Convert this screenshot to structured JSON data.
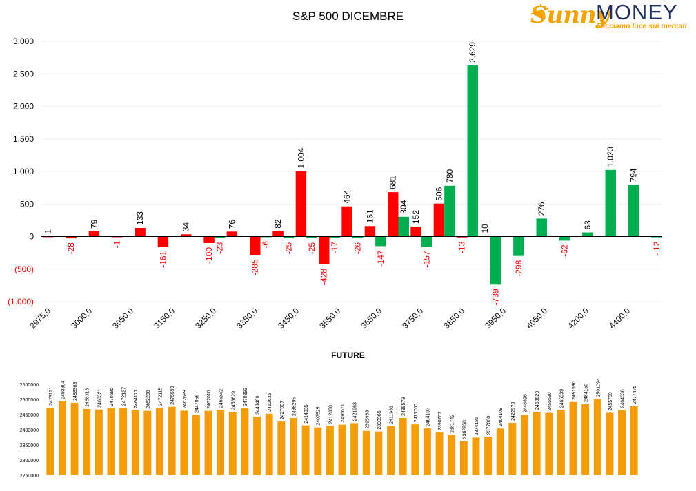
{
  "header": {
    "title": "S&P 500 DICEMBRE",
    "logo_sunny": "Sunny",
    "logo_money": "MONEY",
    "logo_tagline": "Facciamo luce sui mercati"
  },
  "colors": {
    "positive": "#00b050",
    "negative": "#ff0000",
    "future_bar": "#f59c0b",
    "axis": "#000000",
    "grid": "#efefef"
  },
  "chart_data": [
    {
      "type": "bar",
      "title": "S&P 500 DICEMBRE",
      "ylim": [
        -1000,
        3000
      ],
      "yticks": [
        3000,
        2500,
        2000,
        1500,
        1000,
        500,
        0,
        -500,
        -1000
      ],
      "ytick_labels": [
        "3.000",
        "2.500",
        "2.000",
        "1.500",
        "1.000",
        "500",
        "0",
        "(500)",
        "(1.000)"
      ],
      "xtick_labels": [
        "2975,0",
        "3000,0",
        "3050,0",
        "3150,0",
        "3250,0",
        "3350,0",
        "3450,0",
        "3550,0",
        "3650,0",
        "3750,0",
        "3850,0",
        "3950,0",
        "4050,0",
        "4200,0",
        "4400,0"
      ],
      "grid": true,
      "legend": "none",
      "series": [
        {
          "color": "#ff0000",
          "values": [
            1,
            -28,
            79,
            -1,
            133,
            -161,
            34,
            -100,
            76,
            -285,
            82,
            1004,
            -428,
            464,
            161,
            681,
            152,
            506,
            -13,
            10,
            null,
            null,
            null,
            null,
            null,
            null,
            null
          ],
          "labels": [
            "1",
            "-28",
            "79",
            "-1",
            "133",
            "-161",
            "34",
            "-100",
            "76",
            "-285",
            "82",
            "1.004",
            "-428",
            "464",
            "161",
            "681",
            "152",
            "506",
            "-13",
            "10",
            "",
            "",
            "",
            "",
            "",
            "",
            ""
          ]
        },
        {
          "color": "#00b050",
          "values": [
            null,
            null,
            null,
            null,
            null,
            null,
            null,
            -23,
            null,
            -6,
            -25,
            -25,
            -17,
            -26,
            -147,
            304,
            -157,
            780,
            2629,
            -739,
            -298,
            276,
            -62,
            63,
            1023,
            794,
            -12
          ],
          "labels": [
            "",
            "",
            "",
            "",
            "",
            "",
            "",
            "-23",
            "",
            "-6",
            "-25",
            "-25",
            "-17",
            "-26",
            "-147",
            "304",
            "-157",
            "780",
            "2.629",
            "-739",
            "-298",
            "276",
            "-62",
            "63",
            "1.023",
            "794",
            "- 12"
          ]
        }
      ]
    },
    {
      "type": "bar",
      "title": "FUTURE",
      "ylim": [
        2250000,
        2550000
      ],
      "yticks": [
        2550000,
        2500000,
        2450000,
        2400000,
        2350000,
        2300000,
        2250000
      ],
      "ytick_labels": [
        "2550000",
        "2500000",
        "2450000",
        "2400000",
        "2350000",
        "2300000",
        "2250000"
      ],
      "grid": false,
      "legend": "none",
      "values": [
        2473121,
        2493394,
        2488963,
        2468313,
        2466321,
        2470685,
        2472127,
        2464177,
        2462238,
        2472115,
        2475599,
        2462699,
        2447956,
        2462010,
        2465342,
        2458629,
        2470393,
        2443409,
        2452635,
        2427007,
        2438295,
        2414335,
        2407525,
        2412838,
        2416671,
        2421963,
        2395963,
        2393965,
        2411981,
        2438579,
        2417760,
        2404197,
        2390767,
        2381742,
        2362958,
        2374186,
        2377000,
        2404109,
        2422970,
        2448826,
        2459029,
        2455530,
        2465339,
        2491580,
        2484150,
        2501094,
        2455789,
        2464636,
        2477475
      ]
    }
  ]
}
